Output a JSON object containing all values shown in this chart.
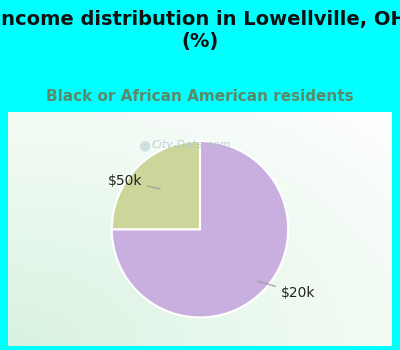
{
  "title": "Income distribution in Lowellville, OH\n(%)",
  "subtitle": "Black or African American residents",
  "slices": [
    75.0,
    25.0
  ],
  "labels": [
    "$20k",
    "$50k"
  ],
  "colors": [
    "#c9aee0",
    "#cdd69a"
  ],
  "startangle": 90,
  "title_fontsize": 14,
  "subtitle_fontsize": 11,
  "title_color": "#111111",
  "subtitle_color": "#5a8a6a",
  "title_bg": "#00ffff",
  "annotation_fontsize": 10,
  "annotation_color": "#222222",
  "watermark_text": "City-Data.com",
  "watermark_color": "#b0c8d0",
  "chart_border_color": "#00ffff"
}
